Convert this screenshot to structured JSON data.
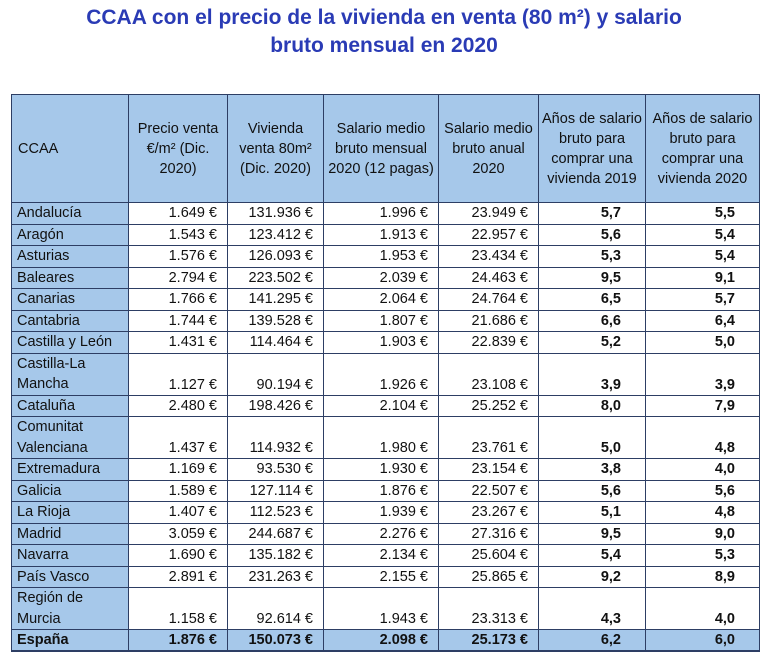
{
  "title": {
    "line1": "CCAA con el precio de la vivienda en venta (80 m²) y salario",
    "line2": "bruto mensual en 2020"
  },
  "colors": {
    "title": "#2a3bb5",
    "header_bg": "#a6c8ea",
    "border": "#2d3e64"
  },
  "headers": [
    "CCAA",
    "Precio venta €/m² (Dic. 2020)",
    "Vivienda venta 80m² (Dic. 2020)",
    "Salario medio bruto mensual 2020 (12 pagas)",
    "Salario medio bruto anual 2020",
    "Años de salario bruto para comprar una vivienda 2019",
    "Años de salario bruto para comprar una vivienda 2020"
  ],
  "rows": [
    [
      "Andalucía",
      "1.649 €",
      "131.936 €",
      "1.996 €",
      "23.949 €",
      "5,7",
      "5,5"
    ],
    [
      "Aragón",
      "1.543 €",
      "123.412 €",
      "1.913 €",
      "22.957 €",
      "5,6",
      "5,4"
    ],
    [
      "Asturias",
      "1.576 €",
      "126.093 €",
      "1.953 €",
      "23.434 €",
      "5,3",
      "5,4"
    ],
    [
      "Baleares",
      "2.794 €",
      "223.502 €",
      "2.039 €",
      "24.463 €",
      "9,5",
      "9,1"
    ],
    [
      "Canarias",
      "1.766 €",
      "141.295 €",
      "2.064 €",
      "24.764 €",
      "6,5",
      "5,7"
    ],
    [
      "Cantabria",
      "1.744 €",
      "139.528 €",
      "1.807 €",
      "21.686 €",
      "6,6",
      "6,4"
    ],
    [
      "Castilla y León",
      "1.431 €",
      "114.464 €",
      "1.903 €",
      "22.839 €",
      "5,2",
      "5,0"
    ],
    [
      "Castilla-La Mancha",
      "1.127 €",
      "90.194 €",
      "1.926 €",
      "23.108 €",
      "3,9",
      "3,9"
    ],
    [
      "Cataluña",
      "2.480 €",
      "198.426 €",
      "2.104 €",
      "25.252 €",
      "8,0",
      "7,9"
    ],
    [
      "Comunitat Valenciana",
      "1.437 €",
      "114.932 €",
      "1.980 €",
      "23.761 €",
      "5,0",
      "4,8"
    ],
    [
      "Extremadura",
      "1.169 €",
      "93.530 €",
      "1.930 €",
      "23.154 €",
      "3,8",
      "4,0"
    ],
    [
      "Galicia",
      "1.589 €",
      "127.114 €",
      "1.876 €",
      "22.507 €",
      "5,6",
      "5,6"
    ],
    [
      "La Rioja",
      "1.407 €",
      "112.523 €",
      "1.939 €",
      "23.267 €",
      "5,1",
      "4,8"
    ],
    [
      "Madrid",
      "3.059 €",
      "244.687 €",
      "2.276 €",
      "27.316 €",
      "9,5",
      "9,0"
    ],
    [
      "Navarra",
      "1.690 €",
      "135.182 €",
      "2.134 €",
      "25.604 €",
      "5,4",
      "5,3"
    ],
    [
      "País Vasco",
      "2.891 €",
      "231.263 €",
      "2.155 €",
      "25.865 €",
      "9,2",
      "8,9"
    ],
    [
      "Región de Murcia",
      "1.158 €",
      "92.614 €",
      "1.943 €",
      "23.313 €",
      "4,3",
      "4,0"
    ]
  ],
  "total": [
    "España",
    "1.876 €",
    "150.073 €",
    "2.098 €",
    "25.173 €",
    "6,2",
    "6,0"
  ]
}
